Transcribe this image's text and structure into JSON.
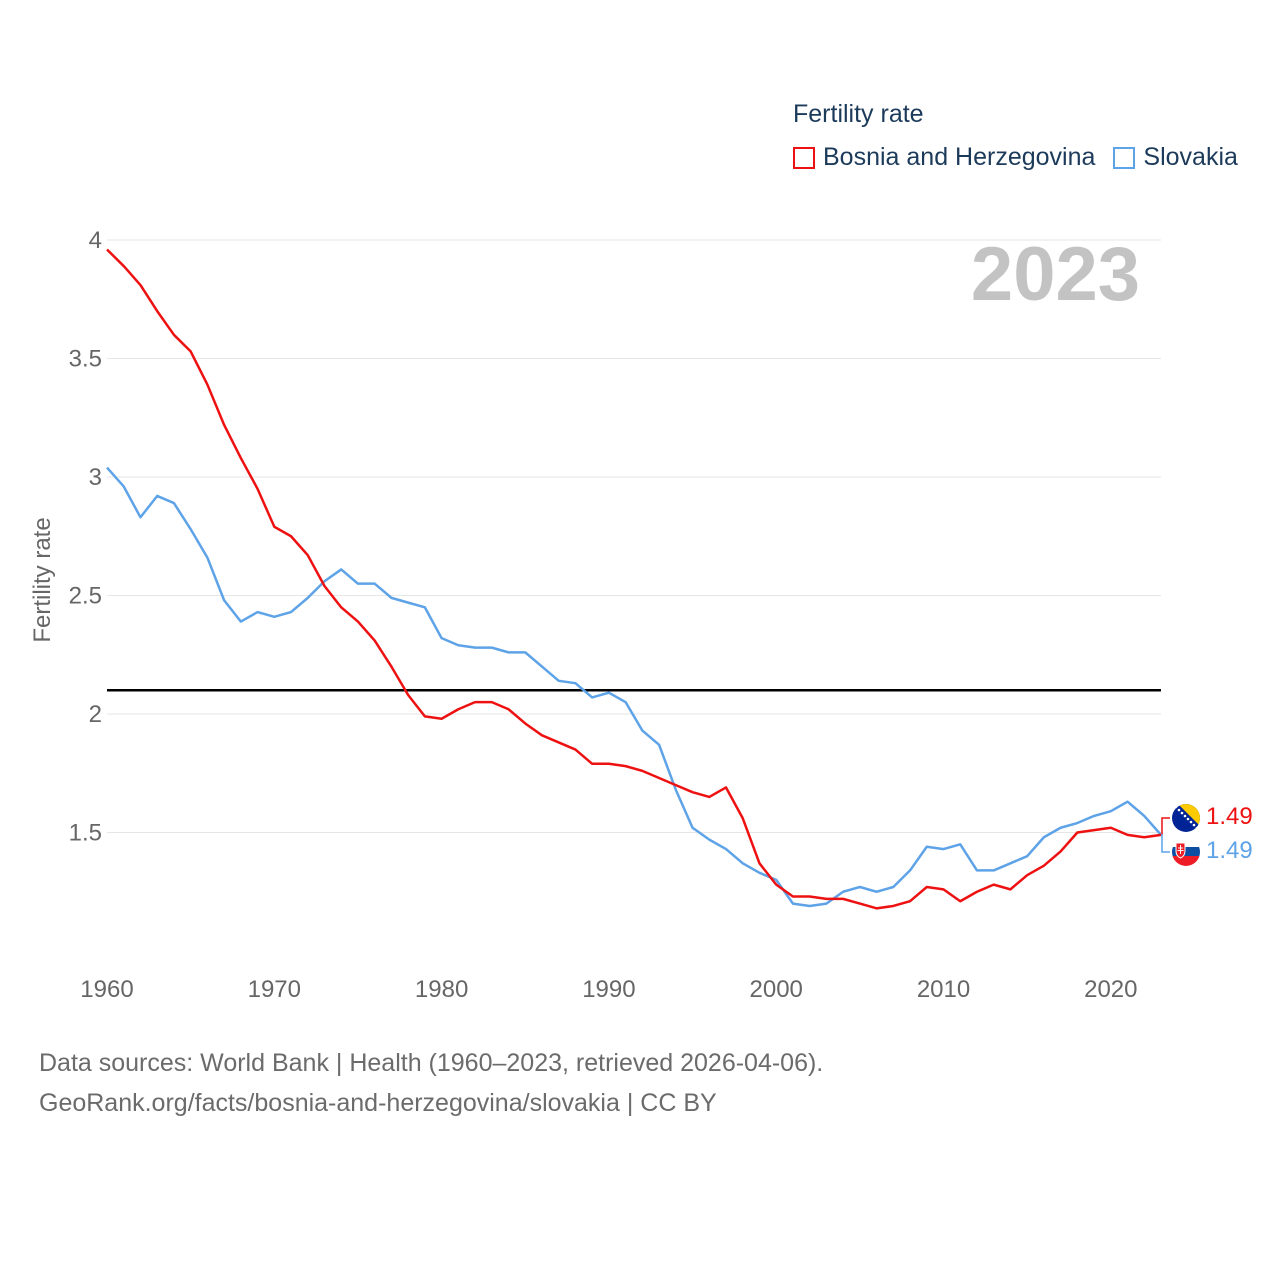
{
  "legend": {
    "title": "Fertility rate",
    "items": [
      {
        "label": "Bosnia and Herzegovina",
        "color": "#ee1111"
      },
      {
        "label": "Slovakia",
        "color": "#5ea3e8"
      }
    ]
  },
  "footer": {
    "line1": "Data sources: World Bank | Health (1960–2023, retrieved 2026-04-06).",
    "line2": "GeoRank.org/facts/bosnia-and-herzegovina/slovakia | CC BY"
  },
  "chart_data": {
    "type": "line",
    "title": "Fertility rate",
    "year_label": "2023",
    "ylabel": "Fertility rate",
    "xlabel": "",
    "xlim": [
      1960,
      2023
    ],
    "ylim": [
      1.0,
      4.0
    ],
    "x_ticks": [
      1960,
      1970,
      1980,
      1990,
      2000,
      2010,
      2020
    ],
    "y_ticks": [
      {
        "value": 1.5,
        "label": "1.5"
      },
      {
        "value": 2,
        "label": "2"
      },
      {
        "value": 2.5,
        "label": "2.5"
      },
      {
        "value": 3,
        "label": "3"
      },
      {
        "value": 3.5,
        "label": "3.5"
      },
      {
        "value": 4,
        "label": "4"
      }
    ],
    "reference_line": {
      "value": 2.1,
      "color": "#000000"
    },
    "x": [
      1960,
      1961,
      1962,
      1963,
      1964,
      1965,
      1966,
      1967,
      1968,
      1969,
      1970,
      1971,
      1972,
      1973,
      1974,
      1975,
      1976,
      1977,
      1978,
      1979,
      1980,
      1981,
      1982,
      1983,
      1984,
      1985,
      1986,
      1987,
      1988,
      1989,
      1990,
      1991,
      1992,
      1993,
      1994,
      1995,
      1996,
      1997,
      1998,
      1999,
      2000,
      2001,
      2002,
      2003,
      2004,
      2005,
      2006,
      2007,
      2008,
      2009,
      2010,
      2011,
      2012,
      2013,
      2014,
      2015,
      2016,
      2017,
      2018,
      2019,
      2020,
      2021,
      2022,
      2023
    ],
    "series": [
      {
        "name": "Bosnia and Herzegovina",
        "color": "#ee1111",
        "end_label": "1.49",
        "flag": "bosnia-flag-icon",
        "values": [
          3.96,
          3.89,
          3.81,
          3.7,
          3.6,
          3.53,
          3.39,
          3.22,
          3.08,
          2.95,
          2.79,
          2.75,
          2.67,
          2.54,
          2.45,
          2.39,
          2.31,
          2.2,
          2.08,
          1.99,
          1.98,
          2.02,
          2.05,
          2.05,
          2.02,
          1.96,
          1.91,
          1.88,
          1.85,
          1.79,
          1.79,
          1.78,
          1.76,
          1.73,
          1.7,
          1.67,
          1.65,
          1.69,
          1.56,
          1.37,
          1.28,
          1.23,
          1.23,
          1.22,
          1.22,
          1.2,
          1.18,
          1.19,
          1.21,
          1.27,
          1.26,
          1.21,
          1.25,
          1.28,
          1.26,
          1.32,
          1.36,
          1.42,
          1.5,
          1.51,
          1.52,
          1.49,
          1.48,
          1.49
        ]
      },
      {
        "name": "Slovakia",
        "color": "#5ea3e8",
        "end_label": "1.49",
        "flag": "slovakia-flag-icon",
        "values": [
          3.04,
          2.96,
          2.83,
          2.92,
          2.89,
          2.78,
          2.66,
          2.48,
          2.39,
          2.43,
          2.41,
          2.43,
          2.49,
          2.56,
          2.61,
          2.55,
          2.55,
          2.49,
          2.47,
          2.45,
          2.32,
          2.29,
          2.28,
          2.28,
          2.26,
          2.26,
          2.2,
          2.14,
          2.13,
          2.07,
          2.09,
          2.05,
          1.93,
          1.87,
          1.68,
          1.52,
          1.47,
          1.43,
          1.37,
          1.33,
          1.3,
          1.2,
          1.19,
          1.2,
          1.25,
          1.27,
          1.25,
          1.27,
          1.34,
          1.44,
          1.43,
          1.45,
          1.34,
          1.34,
          1.37,
          1.4,
          1.48,
          1.52,
          1.54,
          1.57,
          1.59,
          1.63,
          1.57,
          1.49
        ]
      }
    ]
  }
}
